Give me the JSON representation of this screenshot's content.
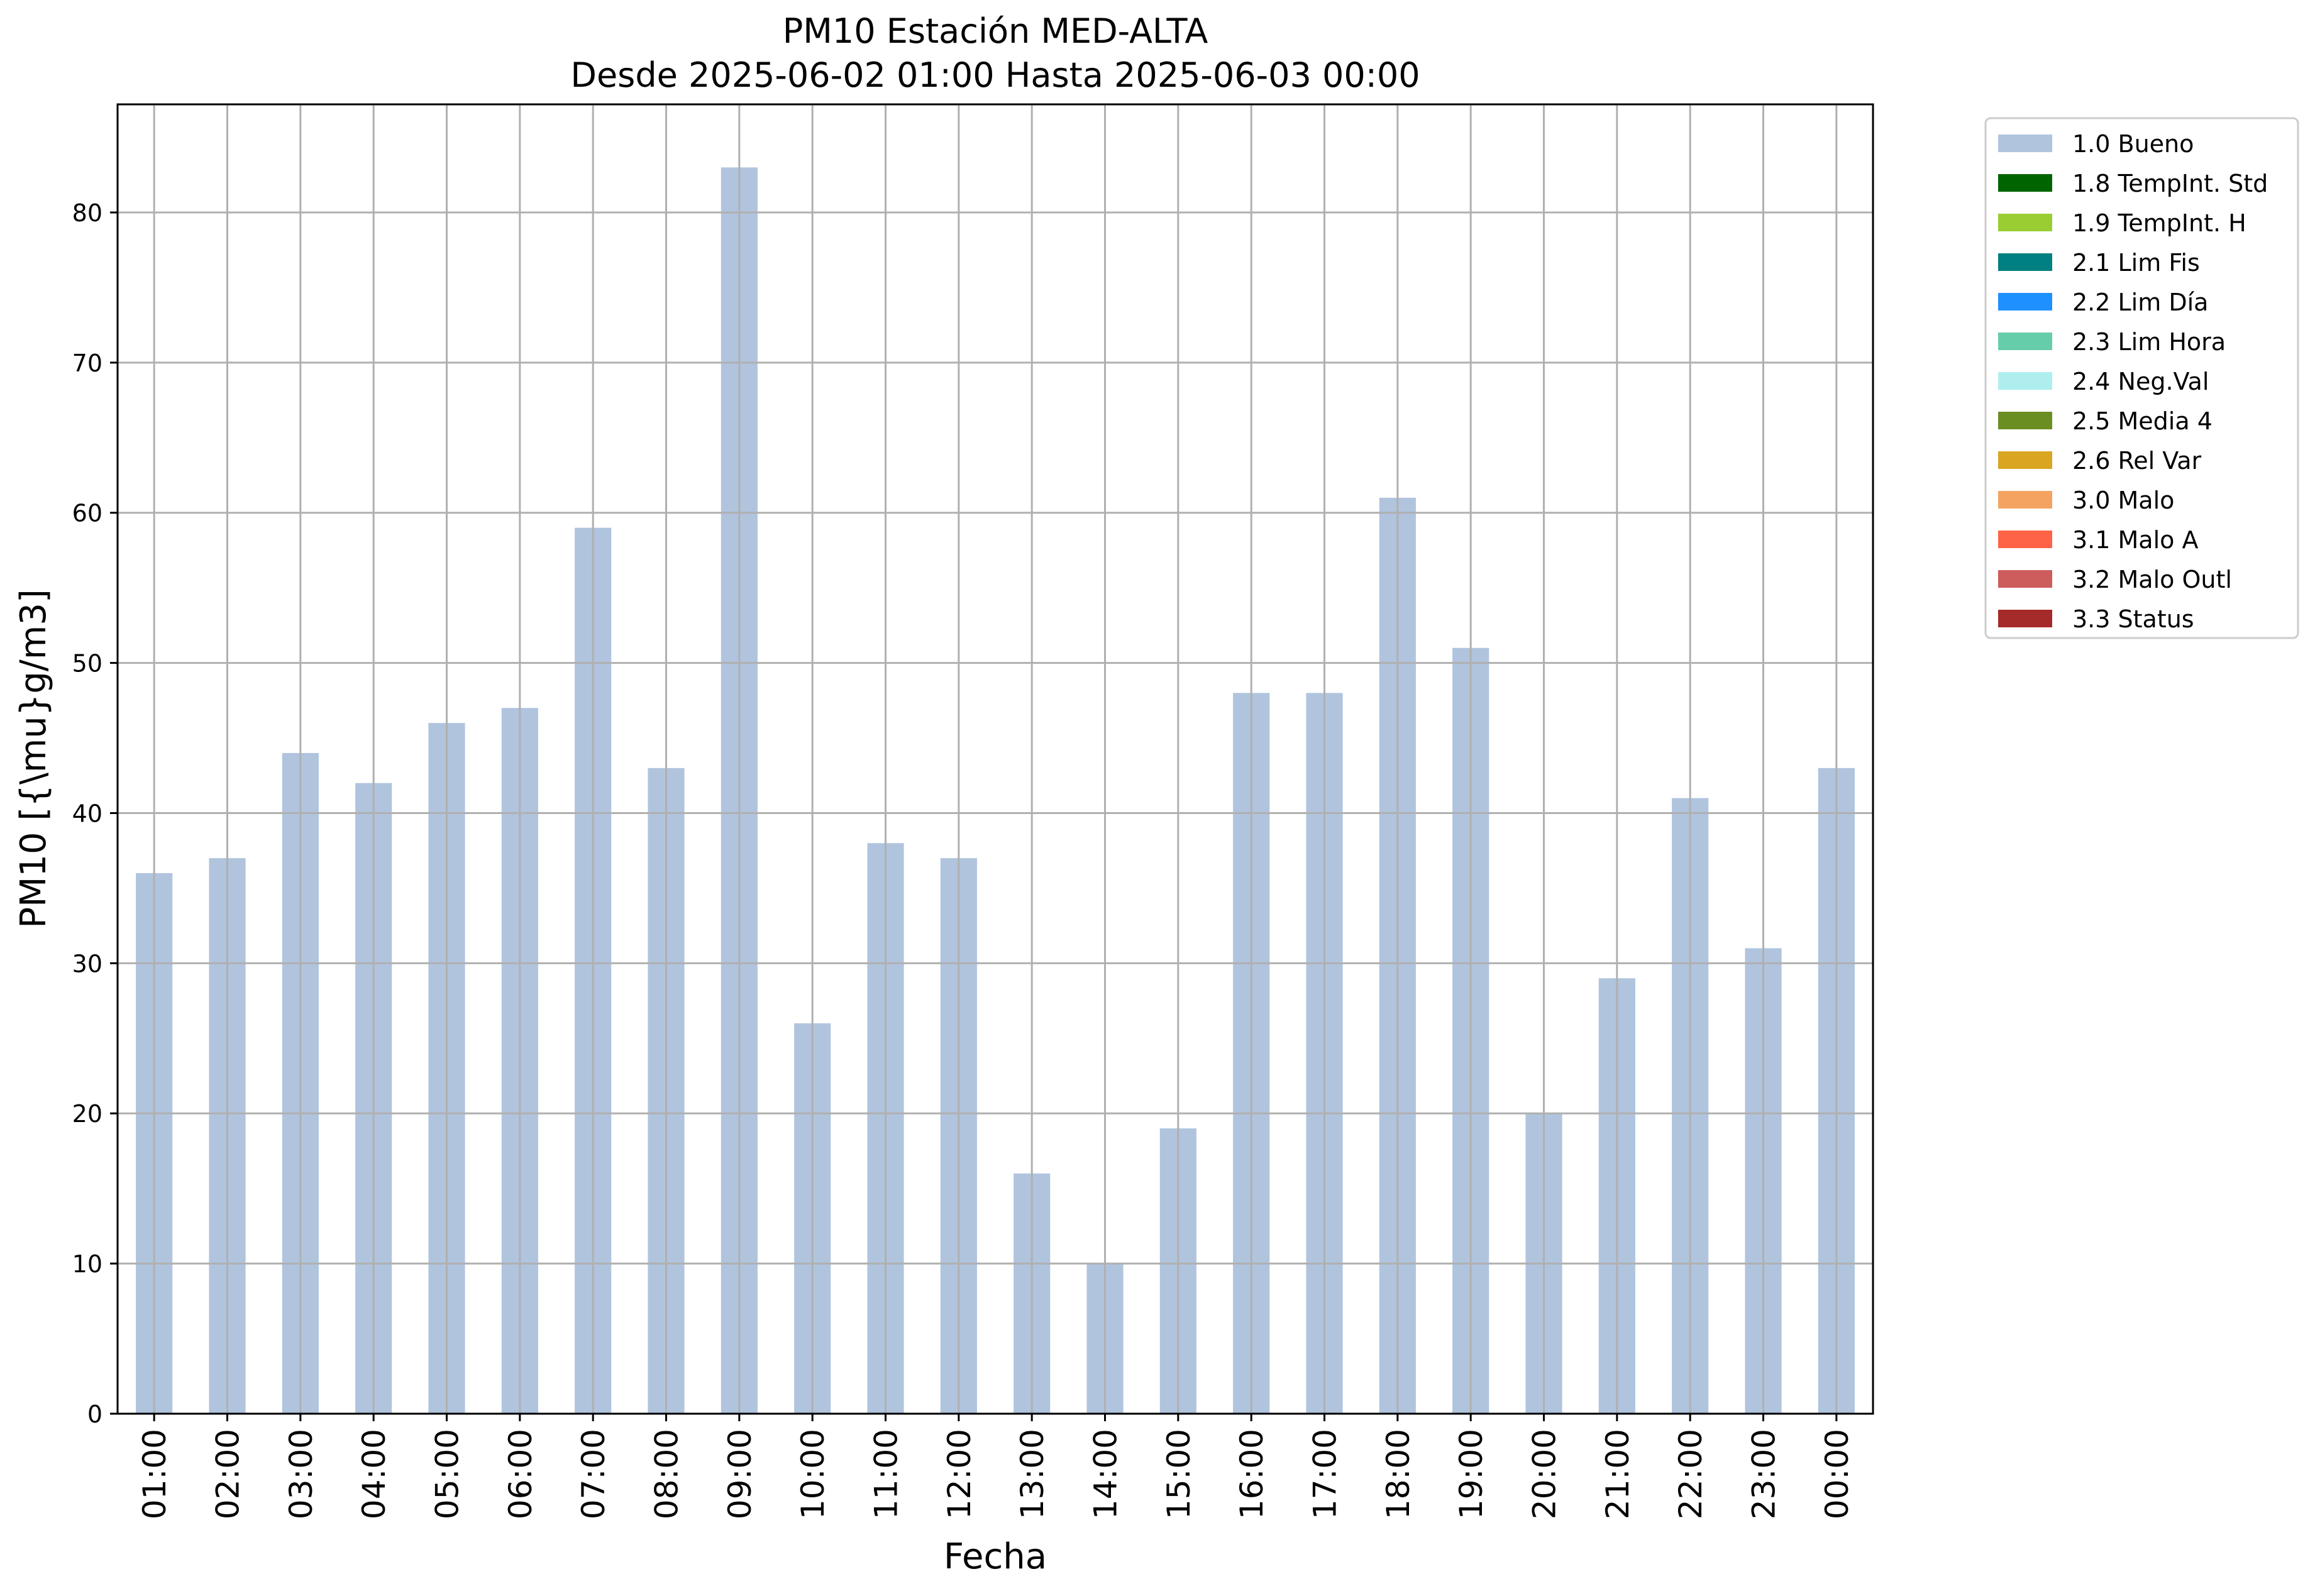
{
  "chart_data": {
    "type": "bar",
    "title": "PM10 Estación MED-ALTA",
    "subtitle": "Desde 2025-06-02 01:00 Hasta 2025-06-03 00:00",
    "xlabel": "Fecha",
    "ylabel": "PM10 [{\\mu}g/m3]",
    "ylim": [
      0,
      87.2
    ],
    "yticks": [
      0,
      10,
      20,
      30,
      40,
      50,
      60,
      70,
      80
    ],
    "grid": true,
    "legend_position": "outside-top-right",
    "categories": [
      "01:00",
      "02:00",
      "03:00",
      "04:00",
      "05:00",
      "06:00",
      "07:00",
      "08:00",
      "09:00",
      "10:00",
      "11:00",
      "12:00",
      "13:00",
      "14:00",
      "15:00",
      "16:00",
      "17:00",
      "18:00",
      "19:00",
      "20:00",
      "21:00",
      "22:00",
      "23:00",
      "00:00"
    ],
    "series": [
      {
        "name": "1.0 Bueno",
        "color": "#b0c4de",
        "values": [
          36,
          37,
          44,
          42,
          46,
          47,
          59,
          43,
          83,
          26,
          38,
          37,
          16,
          10,
          19,
          48,
          48,
          61,
          51,
          20,
          29,
          41,
          31,
          43
        ]
      }
    ],
    "legend": [
      {
        "label": "1.0 Bueno",
        "color": "#b0c4de"
      },
      {
        "label": "1.8 TempInt. Std",
        "color": "#006400"
      },
      {
        "label": "1.9 TempInt. H",
        "color": "#9acd32"
      },
      {
        "label": "2.1 Lim Fis",
        "color": "#008080"
      },
      {
        "label": "2.2 Lim Día",
        "color": "#1e90ff"
      },
      {
        "label": "2.3 Lim Hora",
        "color": "#66cdaa"
      },
      {
        "label": "2.4 Neg.Val",
        "color": "#afeeee"
      },
      {
        "label": "2.5 Media 4",
        "color": "#6b8e23"
      },
      {
        "label": "2.6 Rel Var",
        "color": "#daa520"
      },
      {
        "label": "3.0 Malo",
        "color": "#f4a460"
      },
      {
        "label": "3.1 Malo A",
        "color": "#ff6347"
      },
      {
        "label": "3.2 Malo Outl",
        "color": "#cd5c5c"
      },
      {
        "label": "3.3 Status",
        "color": "#a52a2a"
      }
    ]
  }
}
